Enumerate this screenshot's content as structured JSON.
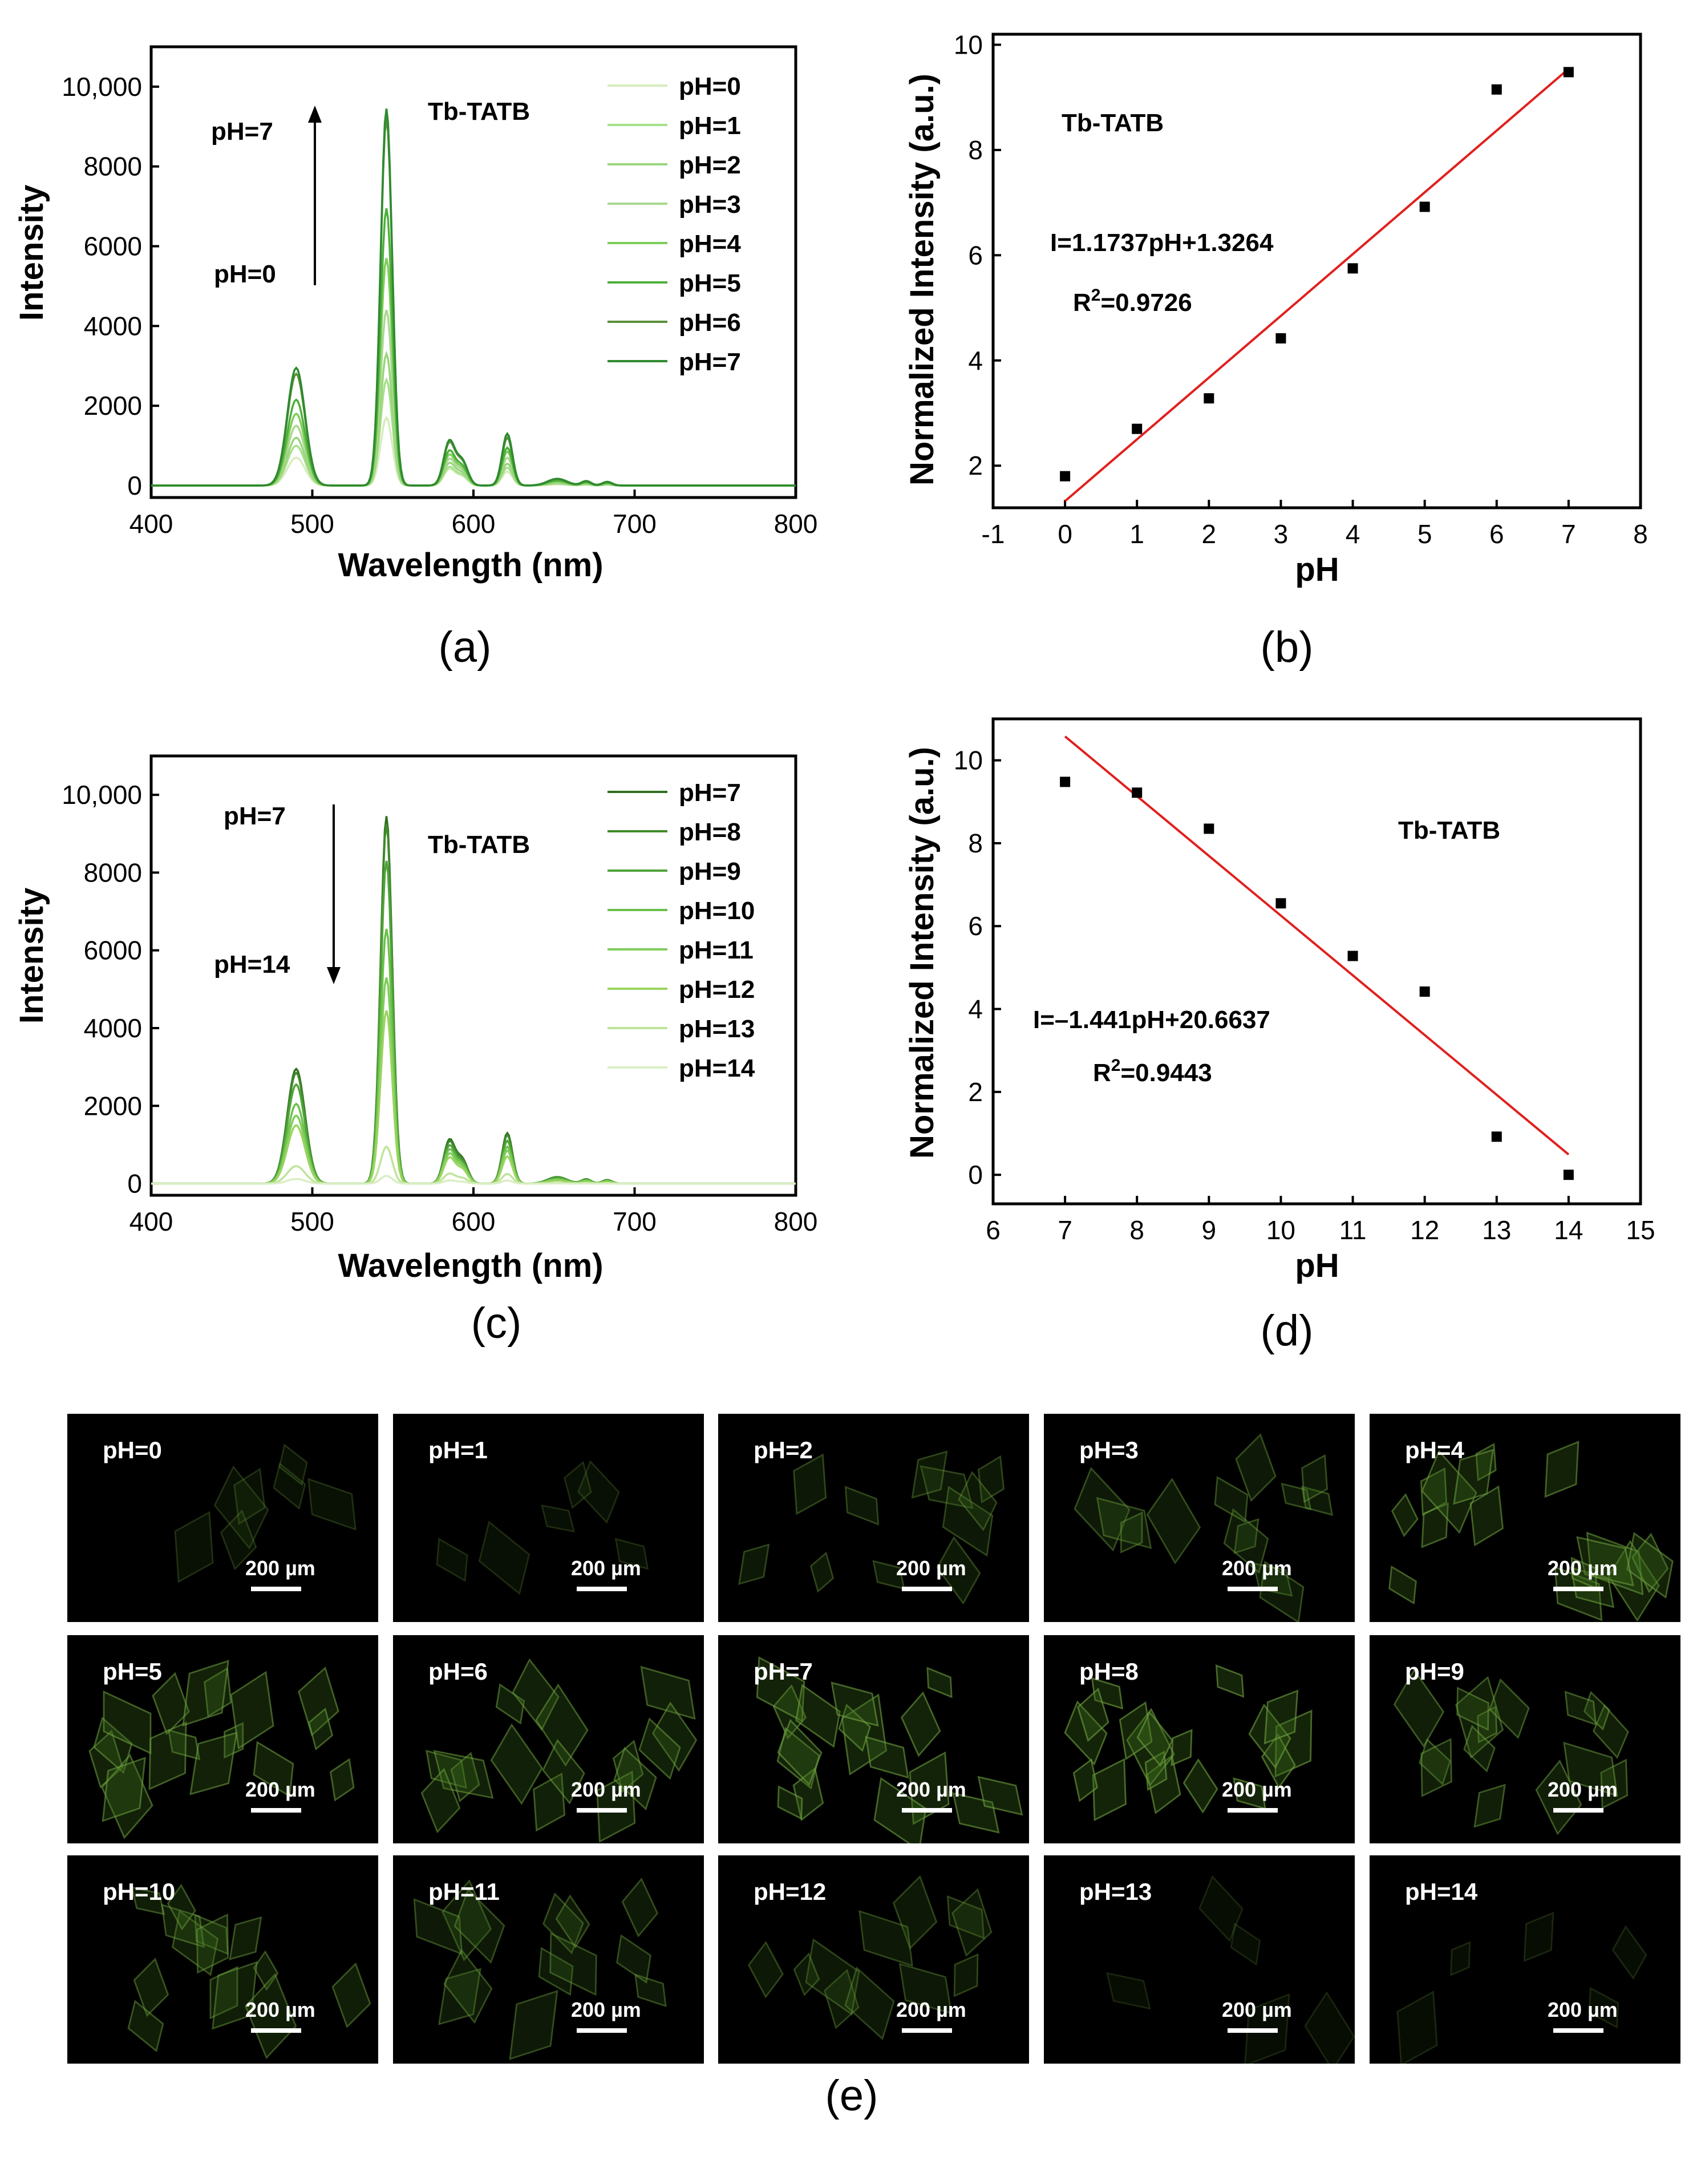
{
  "panels": {
    "a": {
      "label": "(a)"
    },
    "b": {
      "label": "(b)"
    },
    "c": {
      "label": "(c)"
    },
    "d": {
      "label": "(d)"
    },
    "e": {
      "label": "(e)"
    }
  },
  "chart_data": [
    {
      "id": "a",
      "type": "line",
      "title": "",
      "xlabel": "Wavelength (nm)",
      "ylabel": "Intensity",
      "xlim": [
        400,
        800
      ],
      "ylim": [
        -300,
        11000
      ],
      "xticks": [
        "400",
        "500",
        "600",
        "700",
        "800"
      ],
      "yticks": [
        "0",
        "2000",
        "4000",
        "6000",
        "8000",
        "10,000"
      ],
      "ytick_values": [
        0,
        2000,
        4000,
        6000,
        8000,
        10000
      ],
      "annotation": "Tb-TATB",
      "arrow_top_label": "pH=7",
      "arrow_bottom_label": "pH=0",
      "arrow_direction": "up",
      "series": [
        {
          "name": "pH=0",
          "color": "#d6ecbe",
          "peak_546": 1700,
          "peak_490": 700,
          "peak_585": 400,
          "peak_621": 350
        },
        {
          "name": "pH=1",
          "color": "#a6e08a",
          "peak_546": 2650,
          "peak_490": 1000,
          "peak_585": 450,
          "peak_621": 450
        },
        {
          "name": "pH=2",
          "color": "#9ad47e",
          "peak_546": 3300,
          "peak_490": 1200,
          "peak_585": 550,
          "peak_621": 550
        },
        {
          "name": "pH=3",
          "color": "#a9d890",
          "peak_546": 4400,
          "peak_490": 1500,
          "peak_585": 650,
          "peak_621": 700
        },
        {
          "name": "pH=4",
          "color": "#7fcd5a",
          "peak_546": 5700,
          "peak_490": 1800,
          "peak_585": 750,
          "peak_621": 850
        },
        {
          "name": "pH=5",
          "color": "#4caf3a",
          "peak_546": 6950,
          "peak_490": 2150,
          "peak_585": 850,
          "peak_621": 950
        },
        {
          "name": "pH=6",
          "color": "#5a8f3a",
          "peak_546": 9200,
          "peak_490": 2800,
          "peak_585": 1050,
          "peak_621": 1200
        },
        {
          "name": "pH=7",
          "color": "#2e8b2e",
          "peak_546": 9450,
          "peak_490": 2950,
          "peak_585": 1100,
          "peak_621": 1300
        }
      ]
    },
    {
      "id": "b",
      "type": "scatter",
      "xlabel": "pH",
      "ylabel": "Normalized Intensity (a.u.)",
      "xlim": [
        -1,
        8
      ],
      "ylim": [
        1.2,
        10.2
      ],
      "xticks": [
        "-1",
        "0",
        "1",
        "2",
        "3",
        "4",
        "5",
        "6",
        "7",
        "8"
      ],
      "xtick_values": [
        -1,
        0,
        1,
        2,
        3,
        4,
        5,
        6,
        7,
        8
      ],
      "yticks": [
        "2",
        "4",
        "6",
        "8",
        "10"
      ],
      "ytick_values": [
        2,
        4,
        6,
        8,
        10
      ],
      "annotation": "Tb-TATB",
      "equation": "I=1.1737pH+1.3264",
      "r2_prefix": "R",
      "r2_sup": "2",
      "r2_value": "=0.9726",
      "x": [
        0,
        1,
        2,
        3,
        4,
        5,
        6,
        7
      ],
      "y": [
        1.8,
        2.7,
        3.28,
        4.42,
        5.75,
        6.92,
        9.15,
        9.48
      ],
      "fit": {
        "slope": 1.1737,
        "intercept": 1.3264,
        "x_range": [
          0,
          7
        ],
        "color": "#e0201e"
      }
    },
    {
      "id": "c",
      "type": "line",
      "xlabel": "Wavelength (nm)",
      "ylabel": "Intensity",
      "xlim": [
        400,
        800
      ],
      "ylim": [
        -300,
        11000
      ],
      "xticks": [
        "400",
        "500",
        "600",
        "700",
        "800"
      ],
      "yticks": [
        "0",
        "2000",
        "4000",
        "6000",
        "8000",
        "10,000"
      ],
      "ytick_values": [
        0,
        2000,
        4000,
        6000,
        8000,
        10000
      ],
      "annotation": "Tb-TATB",
      "arrow_top_label": "pH=7",
      "arrow_bottom_label": "pH=14",
      "arrow_direction": "down",
      "series": [
        {
          "name": "pH=7",
          "color": "#2f6f1f",
          "peak_546": 9450,
          "peak_490": 2950,
          "peak_585": 1100,
          "peak_621": 1300
        },
        {
          "name": "pH=8",
          "color": "#3f8a2a",
          "peak_546": 9250,
          "peak_490": 2850,
          "peak_585": 1050,
          "peak_621": 1250
        },
        {
          "name": "pH=9",
          "color": "#4fa33a",
          "peak_546": 8300,
          "peak_490": 2550,
          "peak_585": 950,
          "peak_621": 1100
        },
        {
          "name": "pH=10",
          "color": "#6cc04a",
          "peak_546": 6550,
          "peak_490": 2050,
          "peak_585": 850,
          "peak_621": 950
        },
        {
          "name": "pH=11",
          "color": "#7fcd5a",
          "peak_546": 5300,
          "peak_490": 1750,
          "peak_585": 750,
          "peak_621": 850
        },
        {
          "name": "pH=12",
          "color": "#9ad460",
          "peak_546": 4450,
          "peak_490": 1500,
          "peak_585": 650,
          "peak_621": 700
        },
        {
          "name": "pH=13",
          "color": "#c0e49a",
          "peak_546": 950,
          "peak_490": 450,
          "peak_585": 250,
          "peak_621": 250
        },
        {
          "name": "pH=14",
          "color": "#d9eec4",
          "peak_546": 200,
          "peak_490": 120,
          "peak_585": 80,
          "peak_621": 80
        }
      ]
    },
    {
      "id": "d",
      "type": "scatter",
      "xlabel": "pH",
      "ylabel": "Normalized Intensity (a.u.)",
      "xlim": [
        6,
        15
      ],
      "ylim": [
        -0.7,
        11
      ],
      "xticks": [
        "6",
        "7",
        "8",
        "9",
        "10",
        "11",
        "12",
        "13",
        "14",
        "15"
      ],
      "xtick_values": [
        6,
        7,
        8,
        9,
        10,
        11,
        12,
        13,
        14,
        15
      ],
      "yticks": [
        "0",
        "2",
        "4",
        "6",
        "8",
        "10"
      ],
      "ytick_values": [
        0,
        2,
        4,
        6,
        8,
        10
      ],
      "annotation": "Tb-TATB",
      "equation": "I=–1.441pH+20.6637",
      "r2_prefix": "R",
      "r2_sup": "2",
      "r2_value": "=0.9443",
      "x": [
        7,
        8,
        9,
        10,
        11,
        12,
        13,
        14
      ],
      "y": [
        9.48,
        9.22,
        8.35,
        6.55,
        5.28,
        4.42,
        0.92,
        0.0
      ],
      "fit": {
        "slope": -1.441,
        "intercept": 20.6637,
        "x_range": [
          7,
          14
        ],
        "color": "#e0201e"
      }
    }
  ],
  "micrographs": {
    "scale_text": "200 µm",
    "tiles": [
      {
        "label": "pH=0",
        "brightness": 0.25
      },
      {
        "label": "pH=1",
        "brightness": 0.2
      },
      {
        "label": "pH=2",
        "brightness": 0.5
      },
      {
        "label": "pH=3",
        "brightness": 0.6
      },
      {
        "label": "pH=4",
        "brightness": 0.85
      },
      {
        "label": "pH=5",
        "brightness": 0.85
      },
      {
        "label": "pH=6",
        "brightness": 0.8
      },
      {
        "label": "pH=7",
        "brightness": 0.9
      },
      {
        "label": "pH=8",
        "brightness": 0.95
      },
      {
        "label": "pH=9",
        "brightness": 0.75
      },
      {
        "label": "pH=10",
        "brightness": 0.7
      },
      {
        "label": "pH=11",
        "brightness": 0.6
      },
      {
        "label": "pH=12",
        "brightness": 0.5
      },
      {
        "label": "pH=13",
        "brightness": 0.12
      },
      {
        "label": "pH=14",
        "brightness": 0.15
      }
    ]
  }
}
